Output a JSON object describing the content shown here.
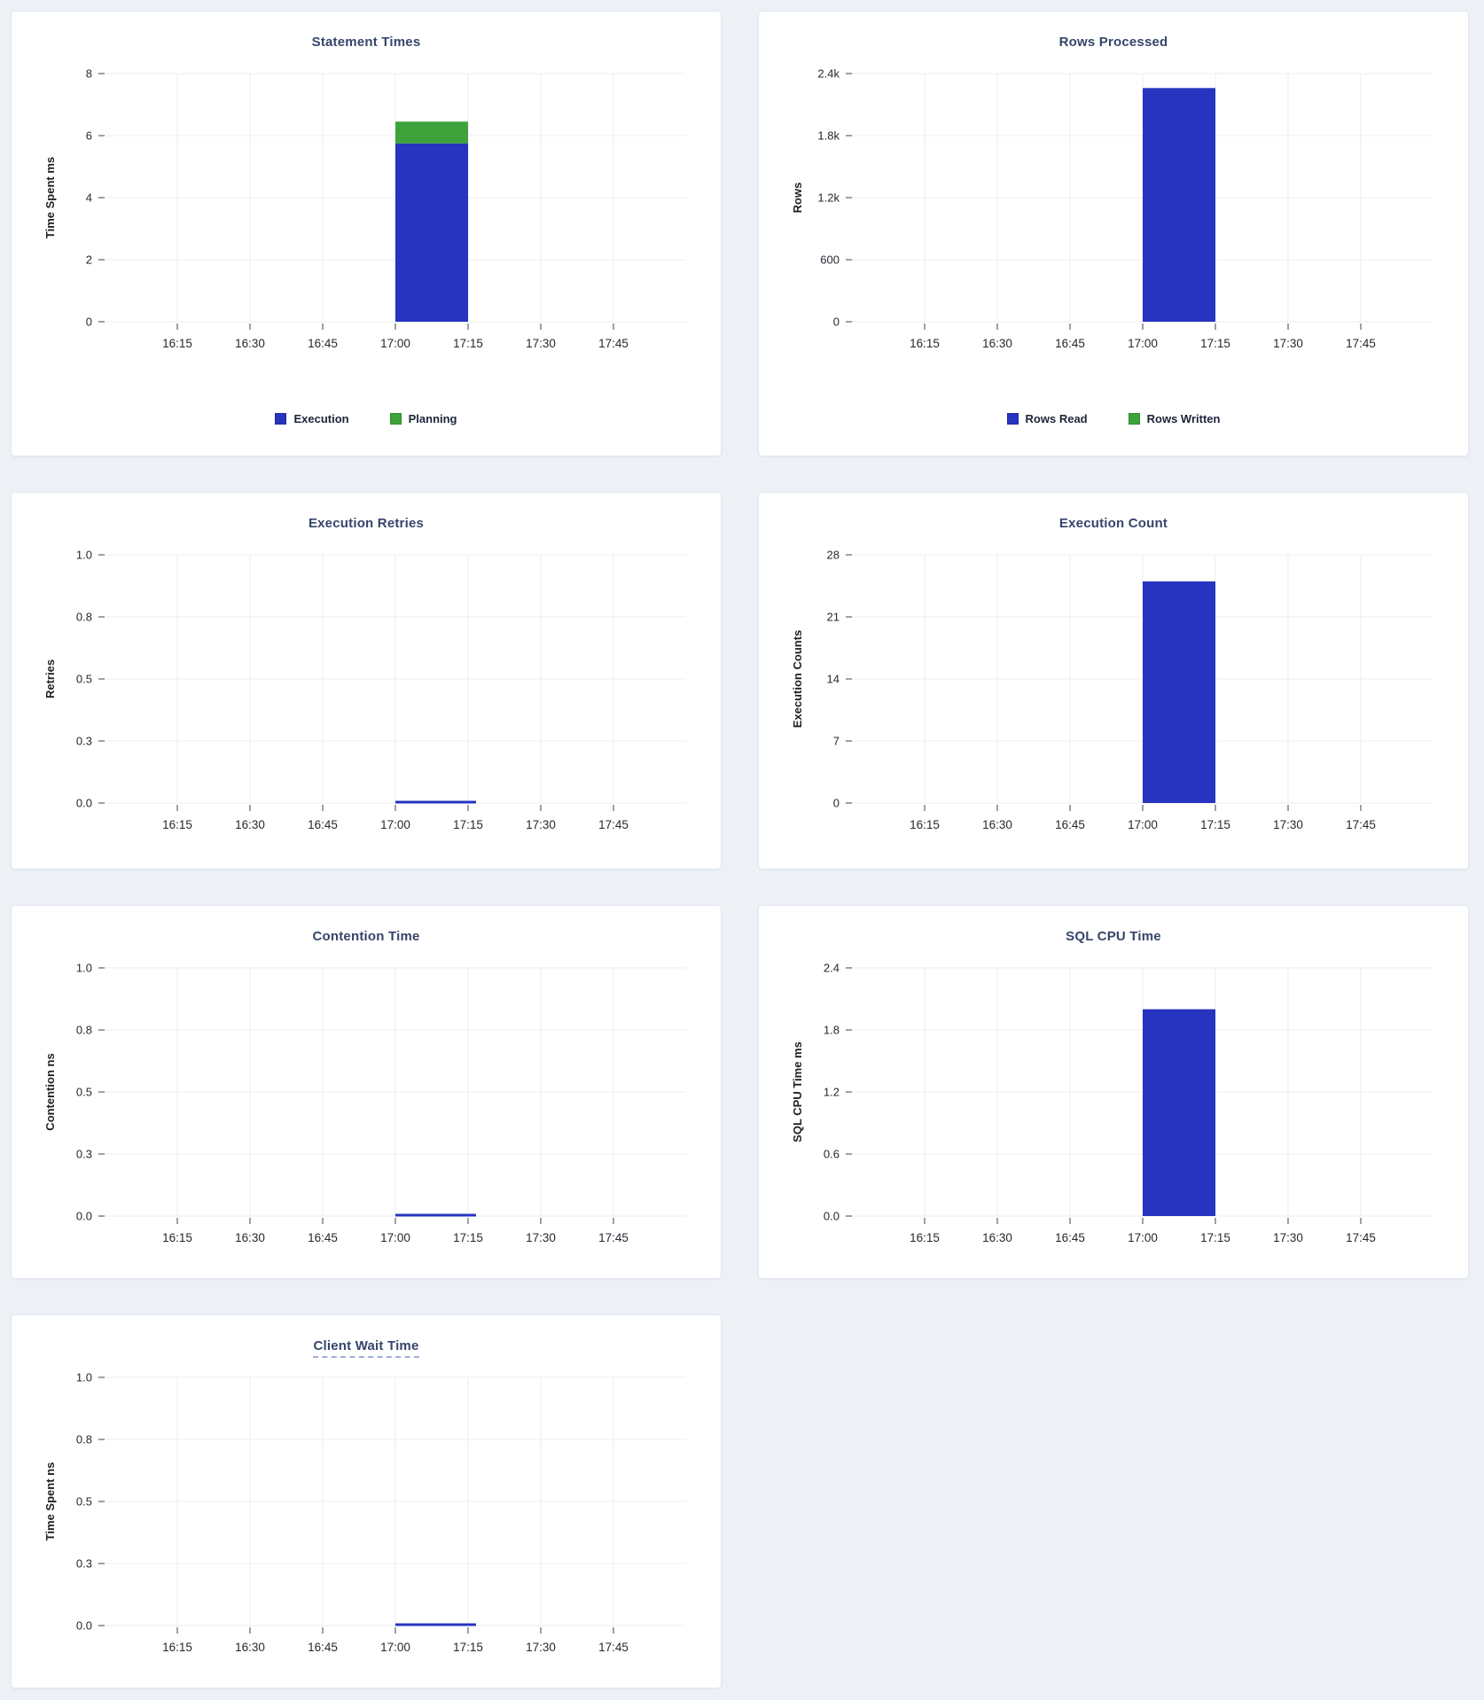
{
  "page": {
    "background": "#edf1f6"
  },
  "colors": {
    "bar_blue": "#2634c0",
    "bar_blue_border": "#1d2a9e",
    "bar_green": "#3da33a",
    "bar_green_border": "#2e8c2c",
    "title_text": "#36456b",
    "tick_text": "#24292f",
    "axis_label_text": "#1b1f26",
    "legend_text": "#1c2439",
    "grid_line": "#ececec",
    "tick_mark": "#3c434c",
    "card_bg": "#ffffff",
    "card_border": "#e3e8ef",
    "title_underline": "#9fadd6"
  },
  "x_axis": {
    "domain": [
      "16:00",
      "18:00"
    ],
    "ticks": [
      "16:15",
      "16:30",
      "16:45",
      "17:00",
      "17:15",
      "17:30",
      "17:45"
    ],
    "bar_window": [
      "17:00",
      "17:15"
    ]
  },
  "chart_data": [
    {
      "id": "statement-times",
      "type": "bar",
      "title": "Statement Times",
      "ylabel": "Time Spent ms",
      "ylim": [
        0,
        8
      ],
      "ytick_labels": [
        "0",
        "2",
        "4",
        "6",
        "8"
      ],
      "x_window": [
        "17:00",
        "17:15"
      ],
      "series": [
        {
          "name": "Execution",
          "color": "blue",
          "value": 5.75
        },
        {
          "name": "Planning",
          "color": "green",
          "value": 0.7
        }
      ],
      "legend": true,
      "legend_position": "bottom",
      "grid": true
    },
    {
      "id": "rows-processed",
      "type": "bar",
      "title": "Rows Processed",
      "ylabel": "Rows",
      "ylim": [
        0,
        2400
      ],
      "ytick_labels": [
        "0",
        "600",
        "1.2k",
        "1.8k",
        "2.4k"
      ],
      "x_window": [
        "17:00",
        "17:15"
      ],
      "series": [
        {
          "name": "Rows Read",
          "color": "blue",
          "value": 2260
        },
        {
          "name": "Rows Written",
          "color": "green",
          "value": 0
        }
      ],
      "legend": true,
      "legend_position": "bottom",
      "grid": true
    },
    {
      "id": "execution-retries",
      "type": "bar",
      "title": "Execution Retries",
      "ylabel": "Retries",
      "ylim": [
        0,
        1
      ],
      "ytick_labels": [
        "0.0",
        "0.3",
        "0.5",
        "0.8",
        "1.0"
      ],
      "x_window": [
        "17:00",
        "17:15"
      ],
      "series": [
        {
          "name": "Retries",
          "color": "blue",
          "value": 0
        }
      ],
      "zero_line": true,
      "legend": false,
      "grid": true
    },
    {
      "id": "execution-count",
      "type": "bar",
      "title": "Execution Count",
      "ylabel": "Execution Counts",
      "ylim": [
        0,
        28
      ],
      "ytick_labels": [
        "0",
        "7",
        "14",
        "21",
        "28"
      ],
      "x_window": [
        "17:00",
        "17:15"
      ],
      "series": [
        {
          "name": "Execution Count",
          "color": "blue",
          "value": 25
        }
      ],
      "legend": false,
      "grid": true
    },
    {
      "id": "contention-time",
      "type": "bar",
      "title": "Contention Time",
      "ylabel": "Contention ns",
      "ylim": [
        0,
        1
      ],
      "ytick_labels": [
        "0.0",
        "0.3",
        "0.5",
        "0.8",
        "1.0"
      ],
      "x_window": [
        "17:00",
        "17:15"
      ],
      "series": [
        {
          "name": "Contention",
          "color": "blue",
          "value": 0
        }
      ],
      "zero_line": true,
      "legend": false,
      "grid": true
    },
    {
      "id": "sql-cpu-time",
      "type": "bar",
      "title": "SQL CPU Time",
      "ylabel": "SQL CPU Time ms",
      "ylim": [
        0,
        2.4
      ],
      "ytick_labels": [
        "0.0",
        "0.6",
        "1.2",
        "1.8",
        "2.4"
      ],
      "x_window": [
        "17:00",
        "17:15"
      ],
      "series": [
        {
          "name": "SQL CPU Time",
          "color": "blue",
          "value": 2.0
        }
      ],
      "legend": false,
      "grid": true
    },
    {
      "id": "client-wait-time",
      "type": "bar",
      "title": "Client Wait Time",
      "title_underline": true,
      "ylabel": "Time Spent ns",
      "ylim": [
        0,
        1
      ],
      "ytick_labels": [
        "0.0",
        "0.3",
        "0.5",
        "0.8",
        "1.0"
      ],
      "x_window": [
        "17:00",
        "17:15"
      ],
      "series": [
        {
          "name": "Client Wait Time",
          "color": "blue",
          "value": 0
        }
      ],
      "zero_line": true,
      "legend": false,
      "grid": true
    }
  ]
}
